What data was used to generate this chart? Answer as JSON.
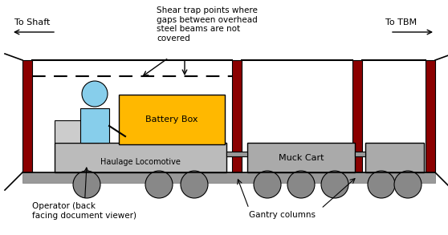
{
  "fig_width": 5.58,
  "fig_height": 2.93,
  "bg_color": "#ffffff",
  "outline_color": "#000000",
  "gantry_col_color": "#8B0000",
  "person_color": "#87CEEB",
  "loco_color": "#bbbbbb",
  "battery_color": "#FFB800",
  "muck_cart_color": "#aaaaaa",
  "rail_color": "#999999",
  "wheel_color": "#888888",
  "text_color": "#000000",
  "annotation_shear": "Shear trap points where\ngaps between overhead\nsteel beams are not\ncovered",
  "annotation_operator": "Operator (back\nfacing document viewer)",
  "annotation_gantry": "Gantry columns",
  "label_shaft": "To Shaft",
  "label_tbm": "To TBM",
  "loco_label": "Haulage Locomotive",
  "battery_label": "Battery Box",
  "muck_cart_label": "Muck Cart"
}
